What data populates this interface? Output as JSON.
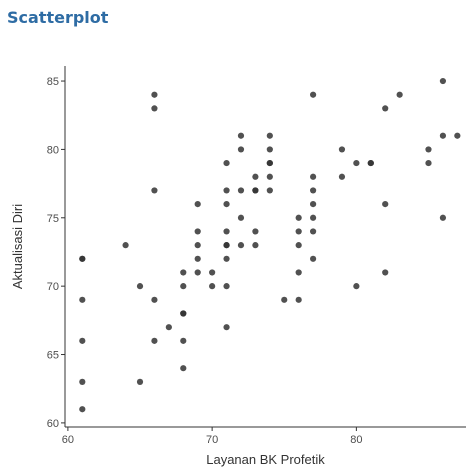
{
  "header": {
    "title": "Scatterplot"
  },
  "chart_data": {
    "type": "scatter",
    "title": "",
    "xlabel": "Layanan BK Profetik",
    "ylabel": "Aktualisasi Diri",
    "xlim": [
      59.8,
      87.6
    ],
    "ylim": [
      59.7,
      86.1
    ],
    "xticks": [
      60,
      70,
      80
    ],
    "yticks": [
      60,
      65,
      70,
      75,
      80,
      85
    ],
    "grid": false,
    "point_color": "#333333",
    "points": [
      [
        61,
        72
      ],
      [
        61,
        72
      ],
      [
        61,
        69
      ],
      [
        61,
        66
      ],
      [
        61,
        63
      ],
      [
        61,
        61
      ],
      [
        64,
        73
      ],
      [
        65,
        70
      ],
      [
        65,
        63
      ],
      [
        66,
        84
      ],
      [
        66,
        83
      ],
      [
        66,
        77
      ],
      [
        66,
        69
      ],
      [
        66,
        66
      ],
      [
        67,
        67
      ],
      [
        68,
        71
      ],
      [
        68,
        70
      ],
      [
        68,
        68
      ],
      [
        68,
        68
      ],
      [
        68,
        66
      ],
      [
        68,
        64
      ],
      [
        69,
        76
      ],
      [
        69,
        74
      ],
      [
        69,
        73
      ],
      [
        69,
        72
      ],
      [
        69,
        71
      ],
      [
        70,
        71
      ],
      [
        70,
        70
      ],
      [
        71,
        79
      ],
      [
        71,
        77
      ],
      [
        71,
        76
      ],
      [
        71,
        74
      ],
      [
        71,
        73
      ],
      [
        71,
        73
      ],
      [
        71,
        72
      ],
      [
        71,
        70
      ],
      [
        71,
        67
      ],
      [
        72,
        81
      ],
      [
        72,
        80
      ],
      [
        72,
        77
      ],
      [
        72,
        75
      ],
      [
        72,
        73
      ],
      [
        73,
        78
      ],
      [
        73,
        77
      ],
      [
        73,
        77
      ],
      [
        73,
        74
      ],
      [
        73,
        73
      ],
      [
        74,
        81
      ],
      [
        74,
        80
      ],
      [
        74,
        79
      ],
      [
        74,
        79
      ],
      [
        74,
        78
      ],
      [
        74,
        77
      ],
      [
        75,
        69
      ],
      [
        76,
        75
      ],
      [
        76,
        74
      ],
      [
        76,
        73
      ],
      [
        76,
        71
      ],
      [
        76,
        69
      ],
      [
        77,
        84
      ],
      [
        77,
        78
      ],
      [
        77,
        77
      ],
      [
        77,
        76
      ],
      [
        77,
        75
      ],
      [
        77,
        74
      ],
      [
        77,
        72
      ],
      [
        79,
        80
      ],
      [
        79,
        78
      ],
      [
        80,
        79
      ],
      [
        80,
        70
      ],
      [
        81,
        79
      ],
      [
        81,
        79
      ],
      [
        82,
        83
      ],
      [
        82,
        76
      ],
      [
        82,
        71
      ],
      [
        83,
        84
      ],
      [
        85,
        80
      ],
      [
        85,
        79
      ],
      [
        86,
        85
      ],
      [
        86,
        81
      ],
      [
        86,
        75
      ],
      [
        87,
        81
      ]
    ]
  }
}
